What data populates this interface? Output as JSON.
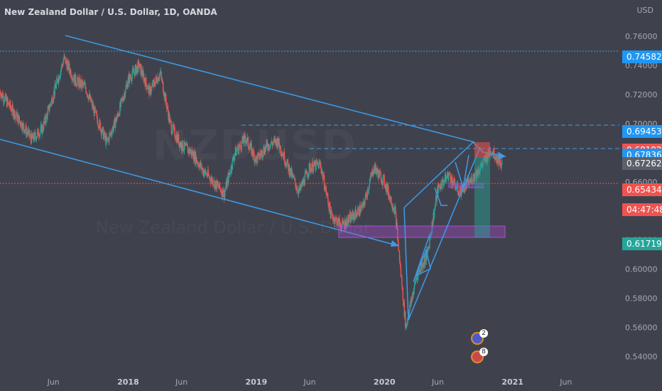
{
  "header": {
    "title": "New Zealand Dollar / U.S. Dollar, 1D, OANDA",
    "currency": "USD"
  },
  "watermark": {
    "symbol": "NZDUSD",
    "subtitle": "New Zealand Dollar / U.S. Dollar"
  },
  "colors": {
    "up": "#26a69a",
    "down": "#ef5350",
    "line": "#3d9be9",
    "zone": "#b04ad8",
    "bg": "#3f424d"
  },
  "price_badges": [
    {
      "label": "0.74582",
      "value": 0.74582,
      "color": "#2196f3"
    },
    {
      "label": "0.69453",
      "value": 0.69453,
      "color": "#2196f3"
    },
    {
      "label": "0.68192",
      "value": 0.68192,
      "color": "#ef5350"
    },
    {
      "label": "0.67836",
      "value": 0.67836,
      "color": "#2196f3"
    },
    {
      "label": "0.67262",
      "value": 0.67262,
      "color": "#5d606b"
    },
    {
      "label": "0.65434",
      "value": 0.65434,
      "color": "#ef5350"
    },
    {
      "label": "04:47:48",
      "value": 0.641,
      "color": "#ef5350"
    },
    {
      "label": "0.61719",
      "value": 0.61719,
      "color": "#26a69a"
    }
  ],
  "events": [
    {
      "count": "2",
      "icon": "news-icon"
    },
    {
      "count": "8",
      "icon": "flag-icon"
    }
  ],
  "chart_data": {
    "type": "candlestick",
    "y_ticks": [
      "0.76000",
      "0.74000",
      "0.72000",
      "0.70000",
      "0.68000",
      "0.66000",
      "0.62000",
      "0.60000",
      "0.58000",
      "0.56000",
      "0.54000"
    ],
    "y_tick_values": [
      0.76,
      0.74,
      0.72,
      0.7,
      0.68,
      0.66,
      0.62,
      0.6,
      0.58,
      0.56,
      0.54
    ],
    "ylim": [
      0.528,
      0.785
    ],
    "x_ticks": [
      {
        "label": "Jun",
        "date": "2017-06"
      },
      {
        "label": "2018",
        "date": "2018-01"
      },
      {
        "label": "Jun",
        "date": "2018-06"
      },
      {
        "label": "2019",
        "date": "2019-01"
      },
      {
        "label": "Jun",
        "date": "2019-06"
      },
      {
        "label": "2020",
        "date": "2020-01"
      },
      {
        "label": "Jun",
        "date": "2020-06"
      },
      {
        "label": "2021",
        "date": "2021-01"
      },
      {
        "label": "Jun",
        "date": "2021-06"
      }
    ],
    "xlim": [
      "2017-01",
      "2021-11"
    ],
    "price_path": [
      [
        "2017-01",
        0.722
      ],
      [
        "2017-03",
        0.7
      ],
      [
        "2017-04",
        0.689
      ],
      [
        "2017-05",
        0.697
      ],
      [
        "2017-06",
        0.72
      ],
      [
        "2017-07",
        0.745
      ],
      [
        "2017-08",
        0.73
      ],
      [
        "2017-09",
        0.725
      ],
      [
        "2017-10",
        0.705
      ],
      [
        "2017-11",
        0.687
      ],
      [
        "2017-12",
        0.705
      ],
      [
        "2018-01",
        0.73
      ],
      [
        "2018-02",
        0.74
      ],
      [
        "2018-03",
        0.722
      ],
      [
        "2018-04",
        0.735
      ],
      [
        "2018-05",
        0.698
      ],
      [
        "2018-06",
        0.685
      ],
      [
        "2018-07",
        0.68
      ],
      [
        "2018-08",
        0.668
      ],
      [
        "2018-09",
        0.66
      ],
      [
        "2018-10",
        0.652
      ],
      [
        "2018-11",
        0.68
      ],
      [
        "2018-12",
        0.69
      ],
      [
        "2019-01",
        0.675
      ],
      [
        "2019-02",
        0.685
      ],
      [
        "2019-03",
        0.688
      ],
      [
        "2019-04",
        0.67
      ],
      [
        "2019-05",
        0.653
      ],
      [
        "2019-06",
        0.67
      ],
      [
        "2019-07",
        0.672
      ],
      [
        "2019-08",
        0.637
      ],
      [
        "2019-09",
        0.63
      ],
      [
        "2019-10",
        0.636
      ],
      [
        "2019-11",
        0.643
      ],
      [
        "2019-12",
        0.67
      ],
      [
        "2020-01",
        0.66
      ],
      [
        "2020-02",
        0.64
      ],
      [
        "2020-03",
        0.56
      ],
      [
        "2020-04",
        0.595
      ],
      [
        "2020-05",
        0.61
      ],
      [
        "2020-06",
        0.655
      ],
      [
        "2020-07",
        0.665
      ],
      [
        "2020-08",
        0.653
      ],
      [
        "2020-09",
        0.66
      ],
      [
        "2020-10",
        0.67
      ],
      [
        "2020-11",
        0.682
      ],
      [
        "2020-12",
        0.672
      ]
    ]
  }
}
